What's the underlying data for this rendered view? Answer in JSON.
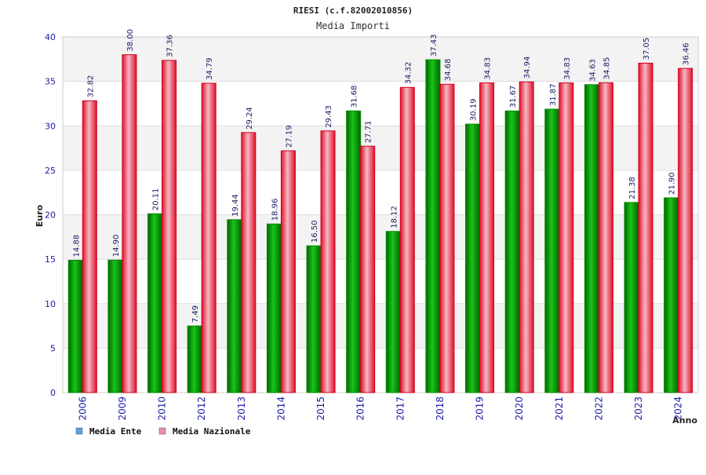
{
  "chart_data": {
    "type": "bar",
    "title": "RIESI (c.f.82002010856)",
    "subtitle": "Media Importi",
    "xlabel": "Anno",
    "ylabel": "Euro",
    "ylim": [
      0,
      40
    ],
    "yticks": [
      0,
      5,
      10,
      15,
      20,
      25,
      30,
      35,
      40
    ],
    "grid": true,
    "legend_position": "bottom-left",
    "categories": [
      "2006",
      "2009",
      "2010",
      "2012",
      "2013",
      "2014",
      "2015",
      "2016",
      "2017",
      "2018",
      "2019",
      "2020",
      "2021",
      "2022",
      "2023",
      "2024"
    ],
    "series": [
      {
        "name": "Media Ente",
        "bar_color": "#00a000",
        "legend_color": "#5aa0e6",
        "values": [
          14.88,
          14.9,
          20.11,
          7.49,
          19.44,
          18.96,
          16.5,
          31.68,
          18.12,
          37.43,
          30.19,
          31.67,
          31.87,
          34.63,
          21.38,
          21.9
        ],
        "labels": [
          "14.88",
          "14.90",
          "20.11",
          "7.49",
          "19.44",
          "18.96",
          "16.50",
          "31.68",
          "18.12",
          "37.43",
          "30.19",
          "31.67",
          "31.87",
          "34.63",
          "21.38",
          "21.90"
        ]
      },
      {
        "name": "Media Nazionale",
        "bar_color": "#e0102a",
        "legend_color": "#e88fb0",
        "values": [
          32.82,
          38.0,
          37.36,
          34.79,
          29.24,
          27.19,
          29.43,
          27.71,
          34.32,
          34.68,
          34.83,
          34.94,
          34.83,
          34.85,
          37.05,
          36.46
        ],
        "labels": [
          "32.82",
          "38.00",
          "37.36",
          "34.79",
          "29.24",
          "27.19",
          "29.43",
          "27.71",
          "34.32",
          "34.68",
          "34.83",
          "34.94",
          "34.83",
          "34.85",
          "37.05",
          "36.46"
        ]
      }
    ]
  }
}
